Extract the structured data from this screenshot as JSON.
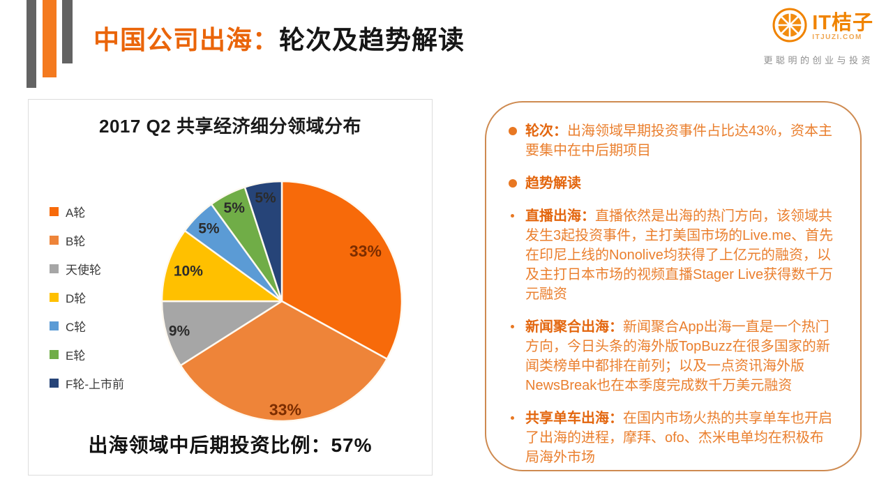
{
  "header": {
    "title_orange": "中国公司出海：",
    "title_black": "轮次及趋势解读",
    "logo": {
      "name": "IT桔子",
      "domain": "ITJUZI.COM",
      "tagline": "更聪明的创业与投资"
    }
  },
  "chart_data": {
    "type": "pie",
    "title": "2017 Q2 共享经济细分领域分布",
    "direction": "clockwise",
    "start_angle_deg": 0,
    "legend_position": "left",
    "slices": [
      {
        "label": "A轮",
        "value": 33,
        "display": "33%",
        "color": "#F76A0A"
      },
      {
        "label": "B轮",
        "value": 33,
        "display": "33%",
        "color": "#EE8439"
      },
      {
        "label": "天使轮",
        "value": 9,
        "display": "9%",
        "color": "#A6A6A6"
      },
      {
        "label": "D轮",
        "value": 10,
        "display": "10%",
        "color": "#FFC000"
      },
      {
        "label": "C轮",
        "value": 5,
        "display": "5%",
        "color": "#5B9BD5"
      },
      {
        "label": "E轮",
        "value": 5,
        "display": "5%",
        "color": "#70AD47"
      },
      {
        "label": "F轮-上市前",
        "value": 5,
        "display": "5%",
        "color": "#264478"
      }
    ],
    "annotation": "出海领域中后期投资比例：57%"
  },
  "panel": {
    "items": [
      {
        "bullet": "large",
        "lead": "轮次：",
        "text": "出海领域早期投资事件占比达43%，资本主要集中在中后期项目"
      },
      {
        "bullet": "large",
        "lead": "趋势解读",
        "text": ""
      },
      {
        "bullet": "small",
        "lead": "直播出海：",
        "text": "直播依然是出海的热门方向，该领域共发生3起投资事件，主打美国市场的Live.me、首先在印尼上线的Nonolive均获得了上亿元的融资，以及主打日本市场的视频直播Stager Live获得数千万元融资"
      },
      {
        "bullet": "small",
        "lead": "新闻聚合出海：",
        "text": "新闻聚合App出海一直是一个热门方向，今日头条的海外版TopBuzz在很多国家的新闻类榜单中都排在前列；以及一点资讯海外版NewsBreak也在本季度完成数千万美元融资"
      },
      {
        "bullet": "small",
        "lead": "共享单车出海：",
        "text": "在国内市场火热的共享单车也开启了出海的进程，摩拜、ofo、杰米电单均在积极布局海外市场"
      }
    ]
  }
}
